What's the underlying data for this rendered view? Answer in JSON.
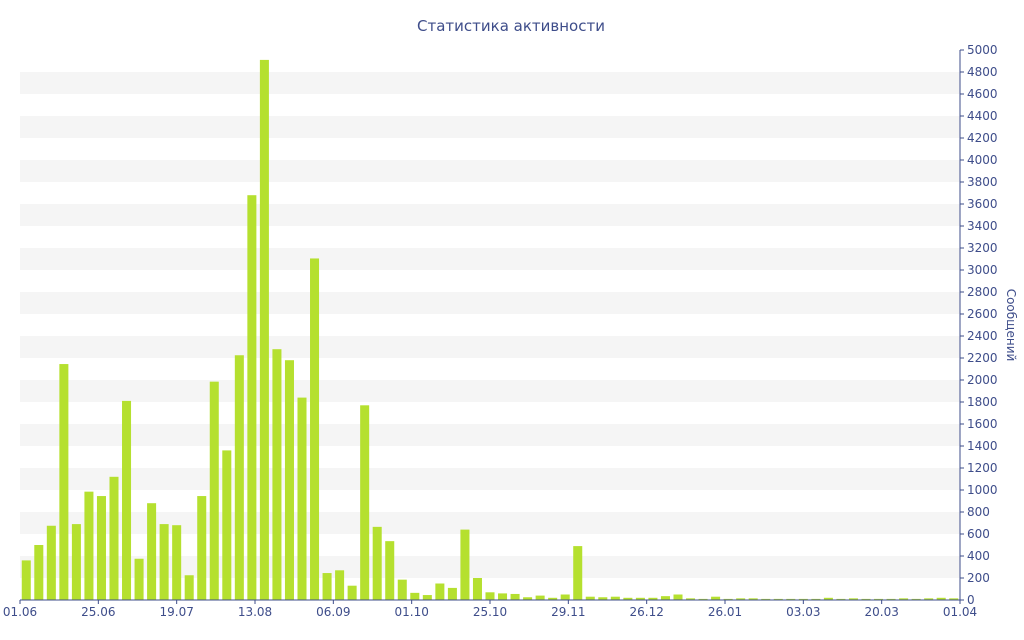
{
  "chart_data": {
    "type": "bar",
    "title": "Статистика активности",
    "ylabel": "Сообщений",
    "ylim": [
      0,
      5000
    ],
    "y_ticks": [
      0,
      200,
      400,
      600,
      800,
      1000,
      1200,
      1400,
      1600,
      1800,
      2000,
      2200,
      2400,
      2600,
      2800,
      3000,
      3200,
      3400,
      3600,
      3800,
      4000,
      4200,
      4400,
      4600,
      4800,
      5000
    ],
    "y_axis_position": "right",
    "grid": "alternating horizontal bands",
    "x_tick_labels": [
      "01.06",
      "25.06",
      "19.07",
      "13.08",
      "06.09",
      "01.10",
      "25.10",
      "29.11",
      "26.12",
      "26.01",
      "03.03",
      "20.03",
      "01.04"
    ],
    "colors": {
      "bar": "#b5e02f",
      "axis_text": "#3e4d8a",
      "band": "#f5f5f5"
    },
    "values": [
      360,
      500,
      675,
      2145,
      690,
      985,
      945,
      1120,
      1810,
      375,
      880,
      690,
      680,
      225,
      945,
      1985,
      1360,
      2225,
      3680,
      4910,
      2280,
      2180,
      1840,
      3105,
      245,
      270,
      130,
      1770,
      665,
      535,
      185,
      65,
      45,
      150,
      110,
      640,
      200,
      70,
      60,
      55,
      25,
      40,
      20,
      50,
      490,
      30,
      25,
      30,
      20,
      20,
      20,
      35,
      50,
      15,
      10,
      30,
      10,
      15,
      15,
      10,
      10,
      10,
      10,
      10,
      20,
      10,
      15,
      10,
      10,
      10,
      15,
      10,
      15,
      20,
      15
    ]
  }
}
